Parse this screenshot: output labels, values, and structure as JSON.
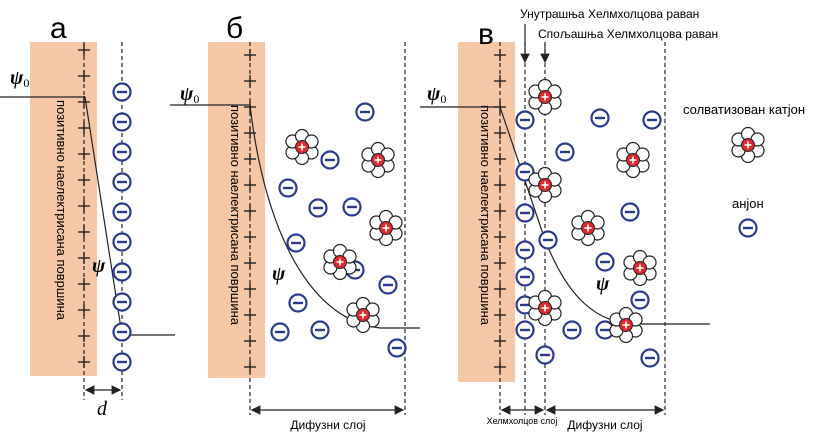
{
  "panels": [
    {
      "letter": "а",
      "surface_label": "позитивно наелектрисана површина",
      "potential_label": "ψ",
      "potential_subscript": "0",
      "curve_label": "ψ",
      "distance_label": "d"
    },
    {
      "letter": "б",
      "surface_label": "позитивно наелектрисана површина",
      "potential_label": "ψ",
      "potential_subscript": "0",
      "curve_label": "ψ",
      "diffuse_label": "Дифузни слој"
    },
    {
      "letter": "в",
      "surface_label": "позитивно наелектрисана површина",
      "potential_label": "ψ",
      "potential_subscript": "0",
      "curve_label": "ψ",
      "inner_plane": "Унутрашња Хелмхолцова раван",
      "outer_plane": "Спољашња Хелмхолцова раван",
      "helmholtz_label": "Хелмхолцов слој",
      "diffuse_label": "Дифузни слој"
    }
  ],
  "legend": {
    "cation": "солватизован катјон",
    "anion": "анјон"
  }
}
